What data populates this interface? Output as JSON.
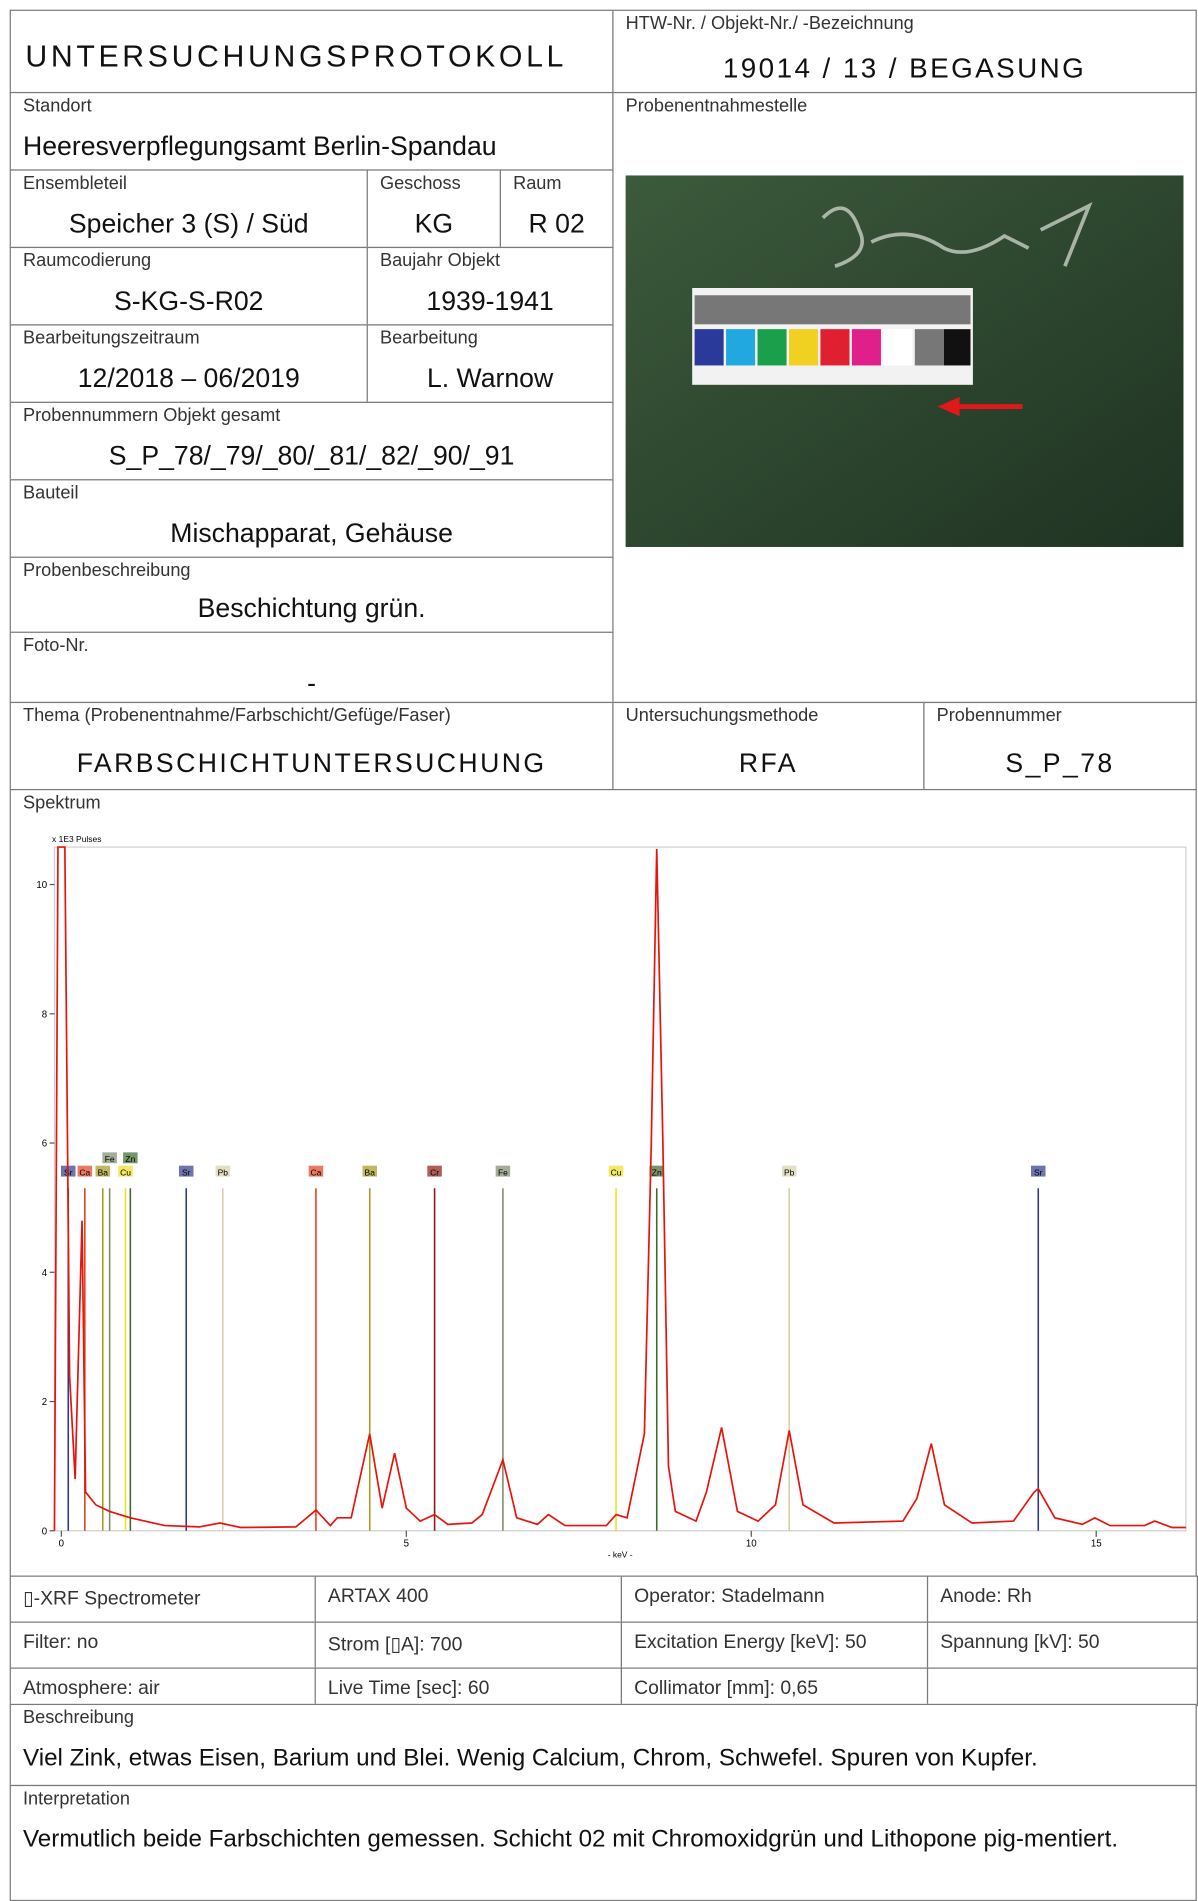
{
  "header": {
    "title": "UNTERSUCHUNGSPROTOKOLL",
    "object_label": "HTW-Nr. / Objekt-Nr./ -Bezeichnung",
    "object_value": "19014 / 13 / BEGASUNG"
  },
  "standort": {
    "label": "Standort",
    "value": "Heeresverpflegungsamt Berlin-Spandau"
  },
  "probenentnahmestelle": {
    "label": "Probenentnahmestelle"
  },
  "ensembleteil": {
    "label": "Ensembleteil",
    "value": "Speicher 3 (S) / Süd"
  },
  "geschoss": {
    "label": "Geschoss",
    "value": "KG"
  },
  "raum": {
    "label": "Raum",
    "value": "R 02"
  },
  "raumcodierung": {
    "label": "Raumcodierung",
    "value": "S-KG-S-R02"
  },
  "baujahr": {
    "label": "Baujahr Objekt",
    "value": "1939-1941"
  },
  "zeitraum": {
    "label": "Bearbeitungszeitraum",
    "value": "12/2018 – 06/2019"
  },
  "bearbeitung": {
    "label": "Bearbeitung",
    "value": "L. Warnow"
  },
  "probennummern": {
    "label": "Probennummern Objekt gesamt",
    "value": "S_P_78/_79/_80/_81/_82/_90/_91"
  },
  "bauteil": {
    "label": "Bauteil",
    "value": "Mischapparat, Gehäuse"
  },
  "probenbeschreibung": {
    "label": "Probenbeschreibung",
    "value": "Beschichtung grün."
  },
  "foto": {
    "label": "Foto-Nr.",
    "value": "-"
  },
  "thema": {
    "label": "Thema (Probenentnahme/Farbschicht/Gefüge/Faser)",
    "value": "FARBSCHICHTUNTERSUCHUNG"
  },
  "methode": {
    "label": "Untersuchungsmethode",
    "value": "RFA"
  },
  "probennummer": {
    "label": "Probennummer",
    "value": "S_P_78"
  },
  "spectrum": {
    "label": "Spektrum",
    "y_label": "x 1E3 Pulses",
    "x_label": "- keV -",
    "color": "#e8140c",
    "xlim": [
      -0.1,
      16.3
    ],
    "ylim": [
      0,
      10.58
    ],
    "xticks": [
      0,
      5,
      10,
      15
    ],
    "yticks": [
      0,
      2,
      4,
      6,
      8,
      10
    ],
    "x": [
      -0.1,
      -0.05,
      0.05,
      0.12,
      0.2,
      0.3,
      0.35,
      0.5,
      0.7,
      1.0,
      1.5,
      2.0,
      2.3,
      2.6,
      3.4,
      3.69,
      3.9,
      4.0,
      4.2,
      4.47,
      4.65,
      4.83,
      5.0,
      5.1,
      5.2,
      5.41,
      5.6,
      5.95,
      6.1,
      6.4,
      6.6,
      6.9,
      7.06,
      7.3,
      7.9,
      8.04,
      8.2,
      8.45,
      8.55,
      8.63,
      8.72,
      8.8,
      8.9,
      9.2,
      9.35,
      9.57,
      9.8,
      10.1,
      10.35,
      10.55,
      10.75,
      11.2,
      12.2,
      12.4,
      12.61,
      12.8,
      13.2,
      13.8,
      14.1,
      14.16,
      14.4,
      14.8,
      14.98,
      15.2,
      15.7,
      15.85,
      16.1,
      16.3
    ],
    "values": [
      0,
      10.58,
      10.58,
      2.4,
      0.8,
      4.8,
      0.6,
      0.4,
      0.3,
      0.2,
      0.08,
      0.06,
      0.12,
      0.05,
      0.06,
      0.32,
      0.08,
      0.2,
      0.2,
      1.5,
      0.35,
      1.2,
      0.35,
      0.25,
      0.15,
      0.25,
      0.1,
      0.12,
      0.25,
      1.1,
      0.2,
      0.1,
      0.25,
      0.08,
      0.08,
      0.25,
      0.2,
      1.5,
      6,
      10.55,
      6,
      1,
      0.3,
      0.15,
      0.6,
      1.6,
      0.3,
      0.15,
      0.4,
      1.55,
      0.4,
      0.12,
      0.15,
      0.5,
      1.35,
      0.4,
      0.12,
      0.15,
      0.6,
      0.65,
      0.2,
      0.1,
      0.2,
      0.08,
      0.08,
      0.15,
      0.05,
      0.05
    ],
    "markers": [
      {
        "element": "Sr",
        "energy": 0.1,
        "color": "#2d3a8c"
      },
      {
        "element": "Ca",
        "energy": 0.34,
        "color": "#e04020"
      },
      {
        "element": "Ba",
        "energy": 0.6,
        "color": "#a89a20"
      },
      {
        "element": "Fe",
        "energy": 0.7,
        "color": "#7e8c6a"
      },
      {
        "element": "Cu",
        "energy": 0.93,
        "color": "#f0e020"
      },
      {
        "element": "Zn",
        "energy": 1.0,
        "color": "#3b6b2a"
      },
      {
        "element": "Sr",
        "energy": 1.81,
        "color": "#2d3a8c"
      },
      {
        "element": "Pb",
        "energy": 2.34,
        "color": "#d8d0a8"
      },
      {
        "element": "Ca",
        "energy": 3.69,
        "color": "#e04020"
      },
      {
        "element": "Ba",
        "energy": 4.47,
        "color": "#a89a20"
      },
      {
        "element": "Cr",
        "energy": 5.41,
        "color": "#8c1a10"
      },
      {
        "element": "Fe",
        "energy": 6.4,
        "color": "#7e8c6a"
      },
      {
        "element": "Cu",
        "energy": 8.04,
        "color": "#f0e020"
      },
      {
        "element": "Zn",
        "energy": 8.63,
        "color": "#3b6b2a"
      },
      {
        "element": "Pb",
        "energy": 10.55,
        "color": "#d8d0a8"
      },
      {
        "element": "Sr",
        "energy": 14.16,
        "color": "#2d3a8c"
      }
    ]
  },
  "instrument": {
    "rows": [
      [
        "▯-XRF Spectrometer",
        "ARTAX 400",
        "Operator: Stadelmann",
        "Anode: Rh"
      ],
      [
        "Filter: no",
        "Strom  [▯A]: 700",
        "Excitation  Energy [keV]: 50",
        "Spannung [kV]: 50"
      ],
      [
        "Atmosphere: air",
        "Live Time  [sec]: 60",
        "Collimator [mm]: 0,65"
      ]
    ]
  },
  "beschreibung": {
    "label": "Beschreibung",
    "text": "Viel Zink, etwas Eisen, Barium und Blei. Wenig Calcium, Chrom, Schwefel. Spuren von Kupfer."
  },
  "interpretation": {
    "label": "Interpretation",
    "text": "Vermutlich beide Farbschichten gemessen. Schicht 02 mit Chromoxidgrün und Lithopone pig-mentiert."
  }
}
